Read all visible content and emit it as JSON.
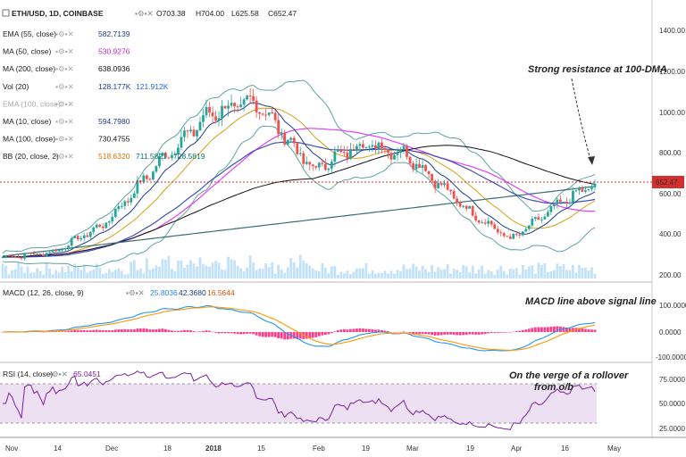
{
  "header": {
    "symbol": "ETH/USD, 1D, COINBASE",
    "open": "O703.38",
    "high": "H704.00",
    "low": "L625.58",
    "close": "C652.47"
  },
  "indicators": [
    {
      "label": "EMA (55, close)",
      "values": [
        "582.7139"
      ],
      "colors": [
        "#1e3a8a"
      ]
    },
    {
      "label": "MA (50, close)",
      "values": [
        "530.9276"
      ],
      "colors": [
        "#c026d3"
      ]
    },
    {
      "label": "MA (200, close)",
      "values": [
        "638.0936"
      ],
      "colors": [
        "#111111"
      ]
    },
    {
      "label": "Vol (20)",
      "values": [
        "128.177K",
        "121.912K"
      ],
      "colors": [
        "#1e3a8a",
        "#2563eb"
      ]
    },
    {
      "label": "EMA (100, close)",
      "values": [],
      "colors": []
    },
    {
      "label": "MA (10, close)",
      "values": [
        "594.7980"
      ],
      "colors": [
        "#1e3a8a"
      ]
    },
    {
      "label": "MA (100, close)",
      "values": [
        "730.4755"
      ],
      "colors": [
        "#111111"
      ]
    },
    {
      "label": "BB (20, close, 2)",
      "values": [
        "518.6320",
        "711.5821",
        "728.5819"
      ],
      "colors": [
        "#d97706",
        "#0f766e",
        "#0f766e"
      ]
    }
  ],
  "annotations": {
    "resistance": "Strong resistance at 100-DMA",
    "macd": "MACD line above signal line",
    "rsi_line1": "On the verge of a rollover",
    "rsi_line2": "from o/b"
  },
  "macd_header": {
    "label": "MACD (12, 26, close, 9)",
    "values": [
      "25.8036",
      "42.3680",
      "16.5644"
    ]
  },
  "rsi_header": {
    "label": "RSI (14, close)",
    "values": [
      "65.0451"
    ]
  },
  "price_axis_ticks": [
    "1400.00",
    "1200.00",
    "1000.00",
    "800.00",
    "600.00",
    "400.00",
    "200.00"
  ],
  "price_current_label": "652.47",
  "macd_axis_ticks": [
    "100.0000",
    "0.0000",
    "-100.0000"
  ],
  "rsi_axis_ticks": [
    "75.0000",
    "50.0000",
    "25.0000"
  ],
  "time_axis_ticks": [
    "Nov",
    "14",
    "Dec",
    "18",
    "2018",
    "15",
    "Feb",
    "19",
    "Mar",
    "19",
    "Apr",
    "16",
    "May"
  ],
  "colors": {
    "up": "#26a69a",
    "down": "#ef5350",
    "ma50": "#e040fb",
    "ma200": "#222222",
    "ema55": "#3f51b5",
    "ma10": "#1e3a8a",
    "ma100": "#111111",
    "bb": "#5fa3a0",
    "bbmid": "#d4a017",
    "macd": "#2196f3",
    "signal": "#ff9800",
    "hist": "#ff1a75",
    "rsi": "#7b1fa2",
    "rsi_band": "#ede0f2",
    "volume": "#90caf9"
  },
  "chart_data": [
    {
      "type": "candlestick",
      "title": "ETH/USD, 1D, COINBASE",
      "ylim": [
        200,
        1500
      ],
      "yticks": [
        200,
        400,
        600,
        800,
        1000,
        1200,
        1400
      ],
      "x": [
        "Nov",
        "14",
        "Dec",
        "18",
        "2018",
        "15",
        "Feb",
        "19",
        "Mar",
        "19",
        "Apr",
        "16",
        "May"
      ],
      "close_series": [
        {
          "date": "Nov",
          "close": 295
        },
        {
          "date": "14",
          "close": 320
        },
        {
          "date": "Dec",
          "close": 460
        },
        {
          "date": "18",
          "close": 780
        },
        {
          "date": "2018",
          "close": 1000
        },
        {
          "date": "15",
          "close": 1050
        },
        {
          "date": "Feb",
          "close": 720
        },
        {
          "date": "19",
          "close": 850
        },
        {
          "date": "Mar",
          "close": 800
        },
        {
          "date": "19",
          "close": 530
        },
        {
          "date": "Apr",
          "close": 380
        },
        {
          "date": "16",
          "close": 560
        },
        {
          "date": "May",
          "close": 652
        }
      ],
      "last_price": 652.47,
      "ohlc_last": {
        "open": 703.38,
        "high": 704.0,
        "low": 625.58,
        "close": 652.47
      }
    },
    {
      "type": "line",
      "title": "MACD (12, 26, close, 9)",
      "ylim": [
        -100,
        100
      ],
      "series": [
        {
          "name": "MACD",
          "last": 42.368
        },
        {
          "name": "Signal",
          "last": 25.8036
        },
        {
          "name": "Histogram",
          "last": 16.5644
        }
      ]
    },
    {
      "type": "line",
      "title": "RSI (14, close)",
      "ylim": [
        0,
        100
      ],
      "bands": [
        30,
        70
      ],
      "series": [
        {
          "name": "RSI",
          "last": 65.0451
        }
      ]
    }
  ]
}
